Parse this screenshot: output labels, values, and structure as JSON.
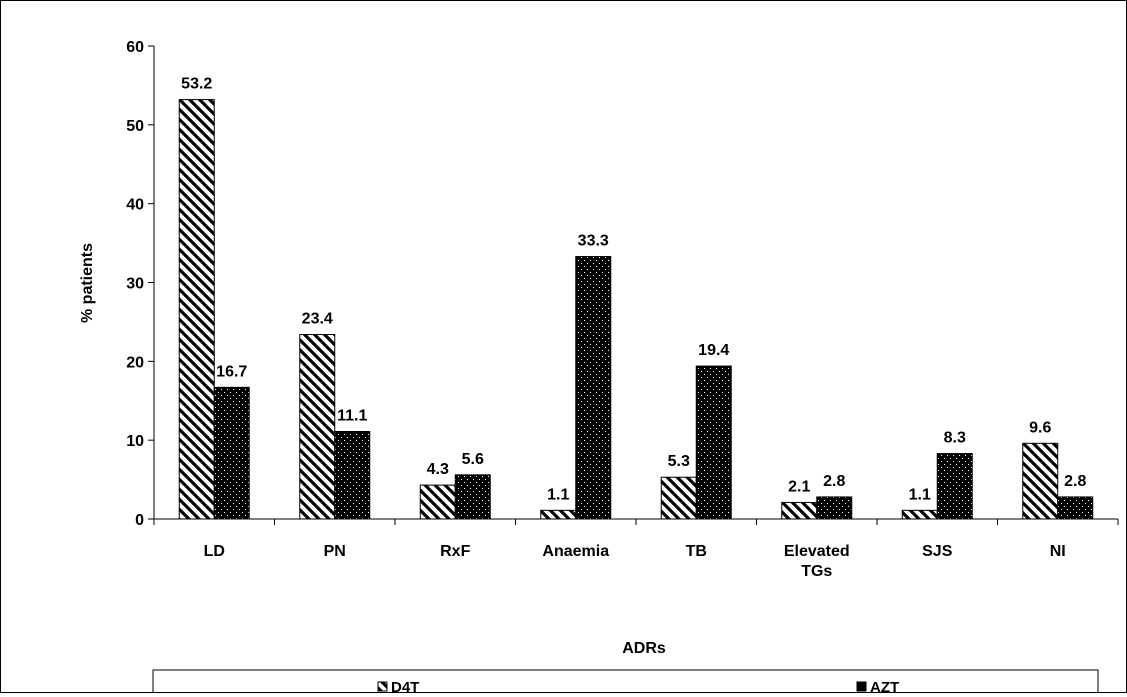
{
  "chart_data": {
    "type": "bar",
    "categories": [
      "LD",
      "PN",
      "RxF",
      "Anaemia",
      "TB",
      "Elevated TGs",
      "SJS",
      "NI"
    ],
    "category_lines": [
      [
        "LD"
      ],
      [
        "PN"
      ],
      [
        "RxF"
      ],
      [
        "Anaemia"
      ],
      [
        "TB"
      ],
      [
        "Elevated",
        "TGs"
      ],
      [
        "SJS"
      ],
      [
        "NI"
      ]
    ],
    "series": [
      {
        "name": "D4T",
        "values": [
          53.2,
          23.4,
          4.3,
          1.1,
          5.3,
          2.1,
          1.1,
          9.6
        ],
        "labels": [
          "53.2",
          "23.4",
          "4.3",
          "1.1",
          "5.3",
          "2.1",
          "1.1",
          "9.6"
        ],
        "pattern": "diagonal-hatch"
      },
      {
        "name": "AZT",
        "values": [
          16.7,
          11.1,
          5.6,
          33.3,
          19.4,
          2.8,
          8.3,
          2.8
        ],
        "labels": [
          "16.7",
          "11.1",
          "5.6",
          "33.3",
          "19.4",
          "2.8",
          "8.3",
          "2.8"
        ],
        "pattern": "black-dotted"
      }
    ],
    "xlabel": "ADRs",
    "ylabel": "% patients",
    "ylim": [
      0,
      60
    ],
    "yticks": [
      0,
      10,
      20,
      30,
      40,
      50,
      60
    ],
    "ytick_labels": [
      "0",
      "10",
      "20",
      "30",
      "40",
      "50",
      "60"
    ],
    "grid": false,
    "legend": "bottom",
    "colors": {
      "bar_outline": "#000000",
      "d4t_fill": "#ffffff",
      "azt_fill": "#000000",
      "background": "#ffffff"
    }
  }
}
